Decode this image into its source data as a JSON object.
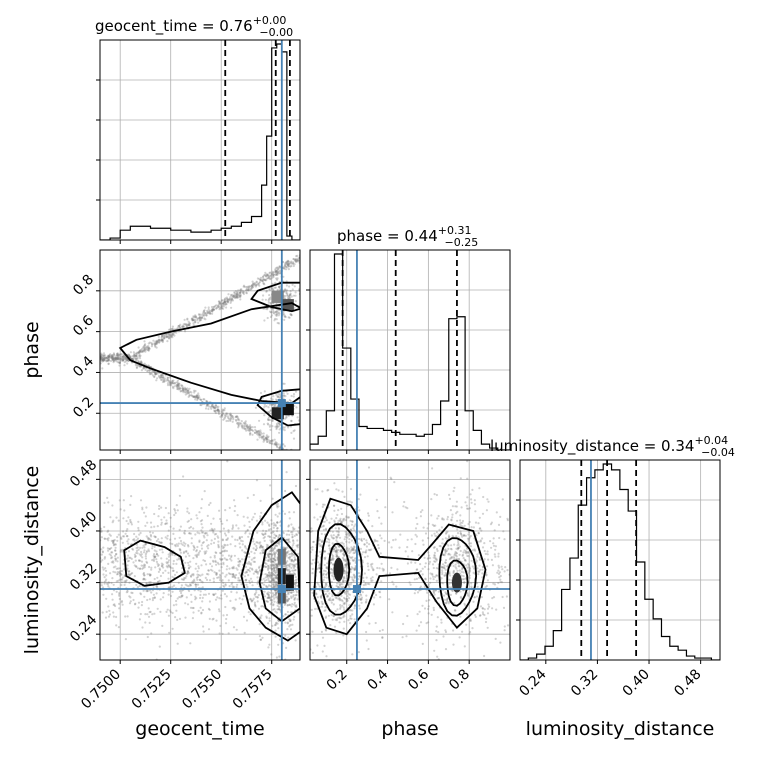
{
  "colors": {
    "truth": "#4682b4",
    "hist": "#000000",
    "grid": "#b0b0b0",
    "points": "#7f7f7f"
  },
  "chart_data": {
    "type": "corner",
    "parameters": [
      "geocent_time",
      "phase",
      "luminosity_distance"
    ],
    "truths": {
      "geocent_time": 0.758,
      "phase": 0.25,
      "luminosity_distance": 0.31
    },
    "titles": [
      {
        "label": "geocent_time = 0.76",
        "plus": "+0.00",
        "minus": "−0.00"
      },
      {
        "label": "phase = 0.44",
        "plus": "+0.31",
        "minus": "−0.25"
      },
      {
        "label": "luminosity_distance = 0.34",
        "plus": "+0.04",
        "minus": "−0.04"
      }
    ],
    "xlabels": [
      "geocent_time",
      "phase",
      "luminosity_distance"
    ],
    "ylabels": {
      "phase": "phase",
      "luminosity_distance": "luminosity_distance"
    },
    "ranges": {
      "geocent_time": [
        0.749,
        0.7589
      ],
      "phase": [
        0.02,
        1.0
      ],
      "luminosity_distance": [
        0.2,
        0.51
      ]
    },
    "ticks": {
      "geocent_time": [
        0.75,
        0.7525,
        0.755,
        0.7575
      ],
      "phase": [
        0.2,
        0.4,
        0.6,
        0.8
      ],
      "luminosity_distance": [
        0.24,
        0.32,
        0.4,
        0.48
      ]
    },
    "tick_labels": {
      "geocent_time": [
        "0.7500",
        "0.7525",
        "0.7550",
        "0.7575"
      ],
      "phase": [
        "0.2",
        "0.4",
        "0.6",
        "0.8"
      ],
      "luminosity_distance": [
        "0.24",
        "0.32",
        "0.40",
        "0.48"
      ]
    },
    "quantiles": {
      "geocent_time": [
        0.7552,
        0.7577,
        0.7584
      ],
      "phase": [
        0.18,
        0.44,
        0.74
      ],
      "luminosity_distance": [
        0.295,
        0.335,
        0.38
      ]
    },
    "histograms": {
      "geocent_time": {
        "edges": [
          0.749,
          0.7495,
          0.75,
          0.7505,
          0.751,
          0.7515,
          0.752,
          0.7525,
          0.753,
          0.7535,
          0.754,
          0.7545,
          0.755,
          0.7555,
          0.756,
          0.7565,
          0.757,
          0.75725,
          0.7575,
          0.75775,
          0.758,
          0.75825,
          0.7585,
          0.75875,
          0.7589
        ],
        "counts": [
          0.0,
          0.01,
          0.05,
          0.07,
          0.07,
          0.06,
          0.06,
          0.05,
          0.05,
          0.04,
          0.04,
          0.05,
          0.06,
          0.07,
          0.09,
          0.12,
          0.28,
          0.53,
          0.98,
          1.0,
          0.96,
          0.02,
          0.0,
          0.0
        ]
      },
      "phase": {
        "edges": [
          0.02,
          0.06,
          0.1,
          0.14,
          0.18,
          0.22,
          0.26,
          0.3,
          0.34,
          0.38,
          0.42,
          0.46,
          0.5,
          0.54,
          0.58,
          0.62,
          0.66,
          0.7,
          0.74,
          0.78,
          0.82,
          0.86,
          0.9,
          0.94,
          1.0
        ],
        "counts": [
          0.03,
          0.07,
          0.2,
          1.0,
          0.52,
          0.26,
          0.12,
          0.11,
          0.11,
          0.1,
          0.09,
          0.08,
          0.08,
          0.07,
          0.08,
          0.13,
          0.25,
          0.67,
          0.68,
          0.2,
          0.1,
          0.03,
          0.01,
          0.0
        ]
      },
      "luminosity_distance": {
        "edges": [
          0.2,
          0.2129,
          0.2258,
          0.2387,
          0.2516,
          0.2645,
          0.2774,
          0.2903,
          0.3032,
          0.3161,
          0.329,
          0.3419,
          0.3548,
          0.3677,
          0.3806,
          0.3935,
          0.4064,
          0.4193,
          0.4322,
          0.4451,
          0.458,
          0.4709,
          0.4838,
          0.4967,
          0.51
        ],
        "counts": [
          0.0,
          0.01,
          0.03,
          0.07,
          0.15,
          0.36,
          0.52,
          0.79,
          0.93,
          0.97,
          1.0,
          0.97,
          0.87,
          0.76,
          0.5,
          0.31,
          0.21,
          0.12,
          0.07,
          0.05,
          0.02,
          0.01,
          0.01,
          0.0
        ]
      }
    },
    "grid": true
  }
}
